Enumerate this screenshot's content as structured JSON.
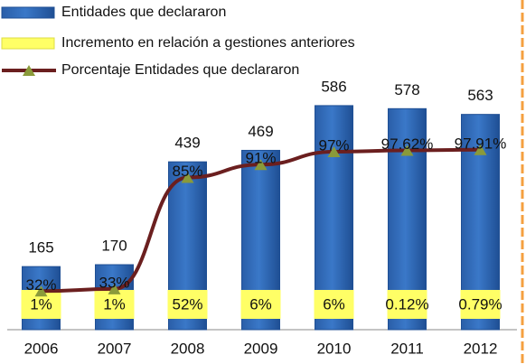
{
  "chart_data": {
    "type": "bar",
    "categories": [
      "2006",
      "2007",
      "2008",
      "2009",
      "2010",
      "2011",
      "2012"
    ],
    "series": [
      {
        "name": "Entidades que declararon",
        "color": "#3a78c8",
        "values": [
          165,
          170,
          439,
          469,
          586,
          578,
          563
        ]
      },
      {
        "name": "Incremento en relación a gestiones anteriores",
        "color": "#ffff66",
        "values": [
          1,
          1,
          52,
          6,
          6,
          0.12,
          0.79
        ],
        "value_labels": [
          "1%",
          "1%",
          "52%",
          "6%",
          "6%",
          "0.12%",
          "0.79%"
        ]
      },
      {
        "name": "Porcentaje Entidades que declararon",
        "color": "#6b1f1f",
        "marker_color": "#8a9a3a",
        "axis": "y2",
        "values": [
          32,
          33,
          85,
          91,
          97,
          97.62,
          97.91
        ],
        "value_labels": [
          "32%",
          "33%",
          "85%",
          "91%",
          "97%",
          "97.62%",
          "97.91%"
        ]
      }
    ],
    "ylim": [
      0,
      600
    ],
    "y2lim": [
      14,
      121
    ]
  }
}
